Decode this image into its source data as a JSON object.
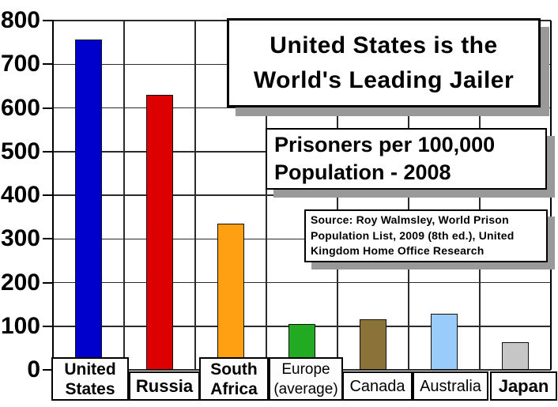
{
  "chart_data": {
    "type": "bar",
    "title_lines": [
      "United States is the",
      "World's Leading Jailer"
    ],
    "subtitle_lines": [
      "Prisoners per 100,000",
      "Population - 2008"
    ],
    "source_lines": [
      "Source: Roy Walmsley, World Prison",
      "Population List, 2009 (8th ed.), United",
      "Kingdom Home Office Research"
    ],
    "categories": [
      "United States",
      "Russia",
      "South Africa",
      "Europe (average)",
      "Canada",
      "Australia",
      "Japan"
    ],
    "values": [
      756,
      629,
      335,
      105,
      116,
      129,
      63
    ],
    "bar_colors": [
      "#0000CC",
      "#DD0000",
      "#FFA012",
      "#22AA22",
      "#8B7239",
      "#99CCFA",
      "#C6C6C6"
    ],
    "category_label_lines": [
      [
        "United",
        "States"
      ],
      [
        "Russia"
      ],
      [
        "South",
        "Africa"
      ],
      [
        "Europe",
        "(average)"
      ],
      [
        "Canada"
      ],
      [
        "Australia"
      ],
      [
        "Japan"
      ]
    ],
    "category_label_bold": [
      true,
      true,
      true,
      false,
      false,
      false,
      true
    ],
    "xlabel": "",
    "ylabel": "",
    "ylim": [
      0,
      800
    ],
    "yticks": [
      0,
      100,
      200,
      300,
      400,
      500,
      600,
      700,
      800
    ],
    "grid": true,
    "legend": "none",
    "colors": {
      "grid": "#2b2b2b",
      "axis": "#000000",
      "shadow": "#999999",
      "plot_background": "#ffffff"
    }
  }
}
